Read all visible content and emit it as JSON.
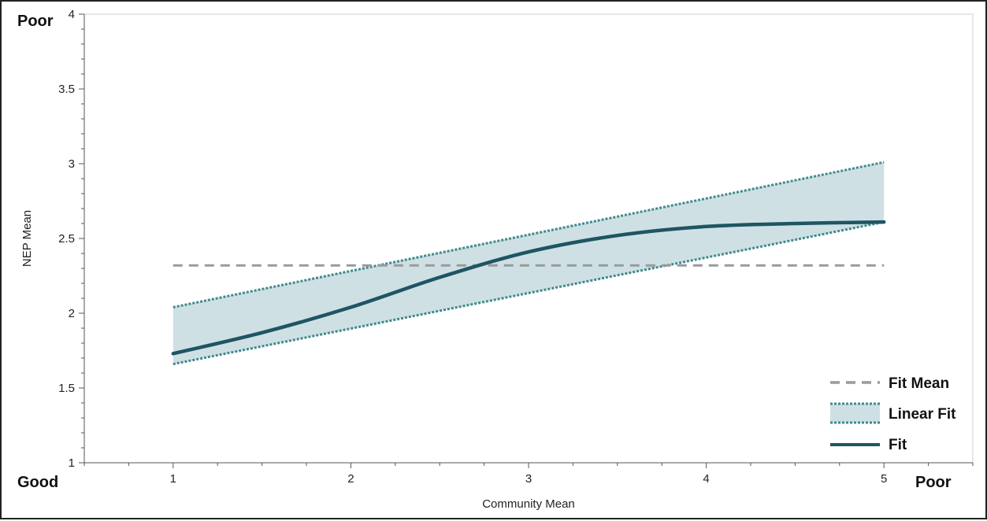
{
  "corner_labels": {
    "y_top": "Poor",
    "x_left": "Good",
    "x_right": "Poor"
  },
  "chart_data": {
    "type": "line",
    "title": "",
    "xlabel": "Community Mean",
    "ylabel": "NEP Mean",
    "xlim": [
      0.5,
      5.5
    ],
    "ylim": [
      1,
      4
    ],
    "x_ticks": [
      1,
      2,
      3,
      4,
      5
    ],
    "x_tick_labels": [
      "1",
      "2",
      "3",
      "4",
      "5"
    ],
    "y_ticks": [
      1,
      1.5,
      2,
      2.5,
      3,
      3.5,
      4
    ],
    "y_tick_labels": [
      "1",
      "1.5",
      "2",
      "2.5",
      "3",
      "3.5",
      "4"
    ],
    "grid": false,
    "legend_position": "bottom-right",
    "series": [
      {
        "name": "Fit Mean",
        "style": "dashed",
        "color": "#9a9a9a",
        "x": [
          1,
          5
        ],
        "y": [
          2.32,
          2.32
        ]
      },
      {
        "name": "Linear Fit",
        "style": "band",
        "color": "#3f8a8c",
        "fill": "#cfe0e4",
        "x": [
          1,
          5
        ],
        "lower": [
          1.66,
          2.61
        ],
        "upper": [
          2.04,
          3.01
        ]
      },
      {
        "name": "Fit",
        "style": "solid",
        "color": "#1f5563",
        "x": [
          1,
          1.5,
          2,
          2.5,
          3,
          3.5,
          4,
          4.5,
          5
        ],
        "y": [
          1.73,
          1.87,
          2.04,
          2.24,
          2.41,
          2.52,
          2.58,
          2.6,
          2.61
        ]
      }
    ]
  }
}
